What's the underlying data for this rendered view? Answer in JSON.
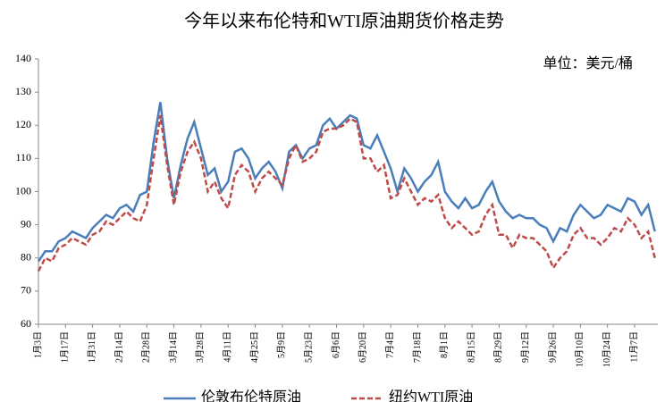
{
  "chart_data": {
    "type": "line",
    "title": "今年以来布伦特和WTI原油期货价格走势",
    "y_axis_label": "单位：美元/桶",
    "categories": [
      "1月3日",
      null,
      null,
      null,
      "1月17日",
      null,
      null,
      null,
      "1月31日",
      null,
      null,
      null,
      "2月14日",
      null,
      null,
      null,
      "2月28日",
      null,
      null,
      null,
      "3月14日",
      null,
      null,
      null,
      "3月28日",
      null,
      null,
      null,
      "4月11日",
      null,
      null,
      null,
      "4月25日",
      null,
      null,
      null,
      "5月9日",
      null,
      null,
      null,
      "5月23日",
      null,
      null,
      null,
      "6月6日",
      null,
      null,
      null,
      "6月20日",
      null,
      null,
      null,
      "7月4日",
      null,
      null,
      null,
      "7月18日",
      null,
      null,
      null,
      "8月1日",
      null,
      null,
      null,
      "8月15日",
      null,
      null,
      null,
      "8月29日",
      null,
      null,
      null,
      "9月12日",
      null,
      null,
      null,
      "9月26日",
      null,
      null,
      null,
      "10月10日",
      null,
      null,
      null,
      "10月24日",
      null,
      null,
      null,
      "11月7日",
      null,
      null,
      null
    ],
    "series": [
      {
        "name": "伦敦布伦特原油",
        "color": "#4a7ebb",
        "style": "solid",
        "values": [
          79,
          82,
          82,
          85,
          86,
          88,
          87,
          86,
          89,
          91,
          93,
          92,
          95,
          96,
          94,
          99,
          100,
          115,
          127,
          110,
          98,
          108,
          116,
          121,
          113,
          105,
          107,
          100,
          103,
          112,
          113,
          110,
          104,
          107,
          109,
          106,
          101,
          112,
          114,
          110,
          113,
          114,
          120,
          122,
          119,
          121,
          123,
          122,
          114,
          113,
          117,
          112,
          107,
          100,
          107,
          104,
          100,
          103,
          105,
          109,
          100,
          97,
          95,
          98,
          95,
          96,
          100,
          103,
          97,
          94,
          92,
          93,
          92,
          92,
          90,
          89,
          85,
          89,
          88,
          93,
          96,
          94,
          92,
          93,
          96,
          95,
          94,
          98,
          97,
          93,
          96,
          88
        ]
      },
      {
        "name": "纽约WTI原油",
        "color": "#be4b48",
        "style": "dashed",
        "values": [
          76,
          80,
          79,
          83,
          84,
          86,
          85,
          84,
          87,
          88,
          91,
          90,
          92,
          94,
          92,
          91,
          96,
          110,
          123,
          108,
          96,
          106,
          112,
          115,
          110,
          100,
          103,
          98,
          95,
          105,
          108,
          106,
          100,
          104,
          106,
          104,
          102,
          110,
          114,
          109,
          110,
          112,
          118,
          119,
          119,
          120,
          122,
          121,
          110,
          110,
          106,
          108,
          98,
          99,
          104,
          100,
          96,
          98,
          97,
          99,
          92,
          89,
          91,
          89,
          87,
          88,
          93,
          96,
          87,
          87,
          83,
          87,
          86,
          86,
          84,
          82,
          77,
          80,
          82,
          87,
          89,
          86,
          86,
          84,
          86,
          89,
          88,
          92,
          90,
          86,
          88,
          80
        ]
      }
    ],
    "ylim": [
      60,
      140
    ],
    "yticks": [
      60,
      70,
      80,
      90,
      100,
      110,
      120,
      130,
      140
    ],
    "grid": false,
    "legend": "bottom"
  }
}
